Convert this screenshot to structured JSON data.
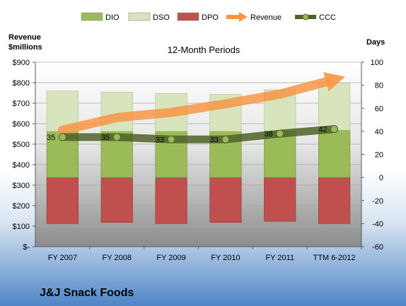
{
  "chart_data": {
    "type": "bar",
    "subtitle": "12-Month Periods",
    "company": "J&J Snack Foods",
    "left_axis": {
      "title_line1": "Revenue",
      "title_line2": "$millions",
      "ylim": [
        0,
        900
      ],
      "ticks": [
        0,
        100,
        200,
        300,
        400,
        500,
        600,
        700,
        800,
        900
      ],
      "tick_labels": [
        "$-",
        "$100",
        "$200",
        "$300",
        "$400",
        "$500",
        "$600",
        "$700",
        "$800",
        "$900"
      ]
    },
    "right_axis": {
      "title": "Days",
      "ylim": [
        -60,
        100
      ],
      "ticks": [
        -60,
        -40,
        -20,
        0,
        20,
        40,
        60,
        80,
        100
      ],
      "tick_labels": [
        "-60",
        "-40",
        "-20",
        "0",
        "20",
        "40",
        "60",
        "80",
        "100"
      ]
    },
    "categories": [
      "FY 2007",
      "FY 2008",
      "FY 2009",
      "FY 2010",
      "FY 2011",
      "TTM 6-2012"
    ],
    "stacked_series": [
      {
        "name": "DPO",
        "values": [
          -40,
          -39,
          -40,
          -39,
          -38,
          -40
        ],
        "color": "#c0504d"
      },
      {
        "name": "DIO",
        "values": [
          40,
          40,
          40,
          40,
          40,
          41
        ],
        "color": "#9bbb59"
      },
      {
        "name": "DSO",
        "values": [
          35,
          34,
          33,
          32,
          36,
          41
        ],
        "color": "#d7e4bd"
      }
    ],
    "line_series": [
      {
        "name": "Revenue",
        "axis": "left",
        "values": [
          568,
          630,
          655,
          697,
          744,
          815
        ],
        "color": "#f79646"
      },
      {
        "name": "CCC",
        "axis": "right",
        "values": [
          35,
          35,
          33,
          33,
          38,
          42
        ],
        "color": "#4f6228"
      }
    ],
    "ccc_labels": [
      "35",
      "35",
      "33",
      "33",
      "38",
      "42"
    ],
    "legend": {
      "position": "top",
      "items": [
        {
          "name": "DIO",
          "kind": "bar",
          "color": "#9bbb59"
        },
        {
          "name": "DSO",
          "kind": "bar",
          "color": "#d7e4bd"
        },
        {
          "name": "DPO",
          "kind": "bar",
          "color": "#c0504d"
        },
        {
          "name": "Revenue",
          "kind": "arrow",
          "color": "#f79646"
        },
        {
          "name": "CCC",
          "kind": "line",
          "color": "#4f6228"
        }
      ]
    },
    "grid": true
  }
}
